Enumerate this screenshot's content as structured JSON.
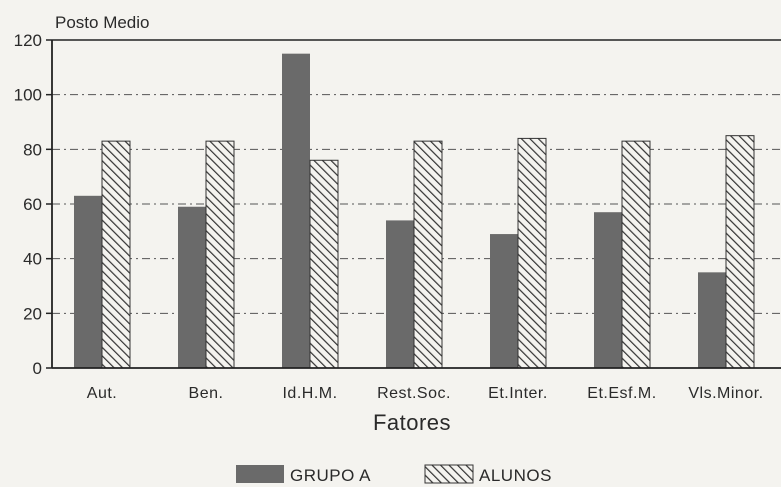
{
  "chart_data": {
    "type": "bar",
    "ylabel": "Posto Medio",
    "xlabel": "Fatores",
    "ylim": [
      0,
      120
    ],
    "yticks": [
      0,
      20,
      40,
      60,
      80,
      100,
      120
    ],
    "grid": true,
    "legend_position": "bottom",
    "categories": [
      "Aut.",
      "Ben.",
      "Id.H.M.",
      "Rest.Soc.",
      "Et.Inter.",
      "Et.Esf.M.",
      "Vls.Minor."
    ],
    "series": [
      {
        "name": "GRUPO A",
        "values": [
          63,
          59,
          115,
          54,
          49,
          57,
          35
        ],
        "color": "#6a6a6a",
        "pattern": "solid"
      },
      {
        "name": "ALUNOS",
        "values": [
          83,
          83,
          76,
          83,
          84,
          83,
          85
        ],
        "color": "#3a3a3a",
        "pattern": "hatch"
      }
    ]
  }
}
